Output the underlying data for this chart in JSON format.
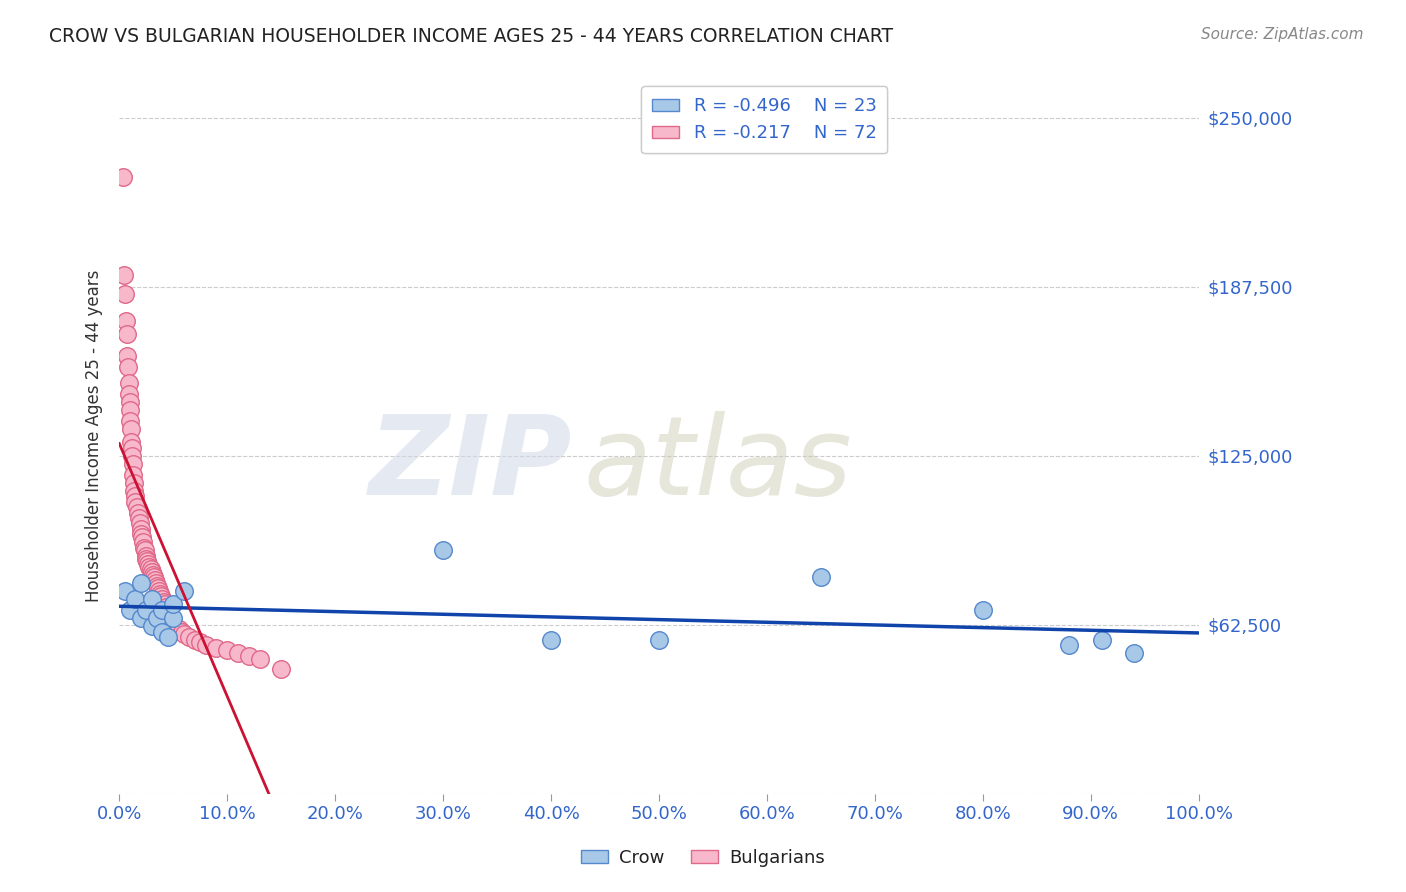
{
  "title": "CROW VS BULGARIAN HOUSEHOLDER INCOME AGES 25 - 44 YEARS CORRELATION CHART",
  "source": "Source: ZipAtlas.com",
  "ylabel": "Householder Income Ages 25 - 44 years",
  "xlim": [
    0.0,
    1.0
  ],
  "ylim": [
    0,
    265000
  ],
  "yticks": [
    0,
    62500,
    125000,
    187500,
    250000
  ],
  "ytick_labels": [
    "",
    "$62,500",
    "$125,000",
    "$187,500",
    "$250,000"
  ],
  "xtick_labels": [
    "0.0%",
    "10.0%",
    "20.0%",
    "30.0%",
    "40.0%",
    "50.0%",
    "60.0%",
    "70.0%",
    "80.0%",
    "90.0%",
    "100.0%"
  ],
  "xticks": [
    0.0,
    0.1,
    0.2,
    0.3,
    0.4,
    0.5,
    0.6,
    0.7,
    0.8,
    0.9,
    1.0
  ],
  "crow_color": "#a8c8e8",
  "crow_edge_color": "#5588cc",
  "bulgarian_color": "#f8b8cc",
  "bulgarian_edge_color": "#e06888",
  "trend_crow_color": "#1144aa",
  "trend_bulgarian_solid_color": "#cc1133",
  "trend_bulgarian_dashed_color": "#e08898",
  "legend_crow_r": "R = -0.496",
  "legend_crow_n": "N = 23",
  "legend_bulgarian_r": "R = -0.217",
  "legend_bulgarian_n": "N = 72",
  "crow_x": [
    0.005,
    0.01,
    0.015,
    0.02,
    0.02,
    0.025,
    0.03,
    0.03,
    0.035,
    0.04,
    0.04,
    0.045,
    0.05,
    0.05,
    0.06,
    0.3,
    0.4,
    0.5,
    0.65,
    0.8,
    0.88,
    0.91,
    0.94
  ],
  "crow_y": [
    75000,
    68000,
    72000,
    65000,
    78000,
    68000,
    62000,
    72000,
    65000,
    60000,
    68000,
    58000,
    65000,
    70000,
    75000,
    90000,
    57000,
    57000,
    80000,
    68000,
    55000,
    57000,
    52000
  ],
  "bulgarian_x": [
    0.003,
    0.004,
    0.005,
    0.006,
    0.007,
    0.007,
    0.008,
    0.009,
    0.009,
    0.01,
    0.01,
    0.01,
    0.011,
    0.011,
    0.012,
    0.012,
    0.013,
    0.013,
    0.014,
    0.014,
    0.015,
    0.015,
    0.016,
    0.017,
    0.018,
    0.019,
    0.02,
    0.02,
    0.021,
    0.022,
    0.023,
    0.024,
    0.025,
    0.025,
    0.026,
    0.027,
    0.028,
    0.029,
    0.03,
    0.031,
    0.032,
    0.033,
    0.034,
    0.035,
    0.036,
    0.037,
    0.038,
    0.039,
    0.04,
    0.041,
    0.042,
    0.043,
    0.044,
    0.045,
    0.046,
    0.047,
    0.048,
    0.05,
    0.052,
    0.055,
    0.058,
    0.06,
    0.065,
    0.07,
    0.075,
    0.08,
    0.09,
    0.1,
    0.11,
    0.12,
    0.13,
    0.15
  ],
  "bulgarian_y": [
    228000,
    192000,
    185000,
    175000,
    170000,
    162000,
    158000,
    152000,
    148000,
    145000,
    142000,
    138000,
    135000,
    130000,
    128000,
    125000,
    122000,
    118000,
    115000,
    112000,
    110000,
    108000,
    106000,
    104000,
    102000,
    100000,
    98000,
    96000,
    95000,
    93000,
    91000,
    90000,
    88000,
    87000,
    86000,
    85000,
    84000,
    83000,
    82000,
    81000,
    80000,
    79000,
    78000,
    77000,
    76000,
    75000,
    74000,
    73000,
    72000,
    71000,
    70000,
    69000,
    68000,
    67000,
    66000,
    65000,
    64000,
    63000,
    62000,
    61000,
    60000,
    59000,
    58000,
    57000,
    56000,
    55000,
    54000,
    53000,
    52000,
    51000,
    50000,
    46000
  ],
  "background_color": "#ffffff",
  "watermark_zip": "ZIP",
  "watermark_atlas": "atlas",
  "title_color": "#222222",
  "axis_label_color": "#333333",
  "tick_color_y": "#3366cc",
  "tick_color_x": "#3366cc",
  "grid_color": "#cccccc",
  "bulgarian_trend_solid_xmax": 0.15,
  "bulgarian_trend_dashed_xmax": 0.32,
  "crow_trend_xstart": 0.0,
  "crow_trend_xend": 1.0
}
